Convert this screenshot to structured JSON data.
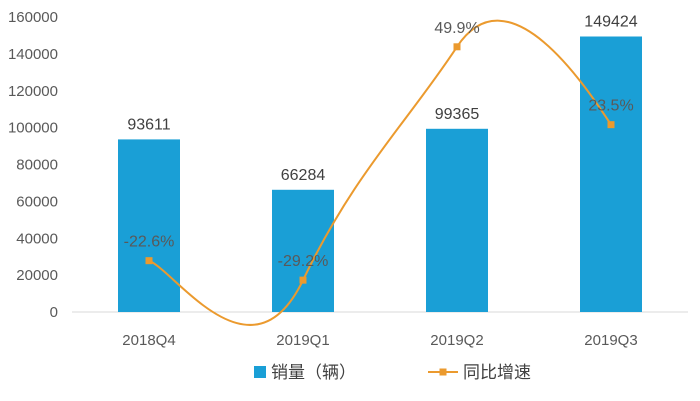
{
  "chart_data": {
    "type": "bar",
    "categories": [
      "2018Q4",
      "2019Q1",
      "2019Q2",
      "2019Q3"
    ],
    "series": [
      {
        "name": "销量（辆）",
        "type": "bar",
        "axis": "left",
        "values": [
          93611,
          66284,
          99365,
          149424
        ],
        "labels": [
          "93611",
          "66284",
          "99365",
          "149424"
        ],
        "color": "#1a9fd6"
      },
      {
        "name": "同比增速",
        "type": "line",
        "axis": "right",
        "values": [
          -22.6,
          -29.2,
          49.9,
          23.5
        ],
        "labels": [
          "-22.6%",
          "-29.2%",
          "49.9%",
          "23.5%"
        ],
        "color": "#eb9a2e"
      }
    ],
    "ylim": [
      0,
      160000
    ],
    "yticks": [
      "0",
      "20000",
      "40000",
      "60000",
      "80000",
      "100000",
      "120000",
      "140000",
      "160000"
    ],
    "y2lim": [
      -40,
      60
    ],
    "smooth_line": true,
    "grid": false,
    "legend_position": "bottom"
  }
}
